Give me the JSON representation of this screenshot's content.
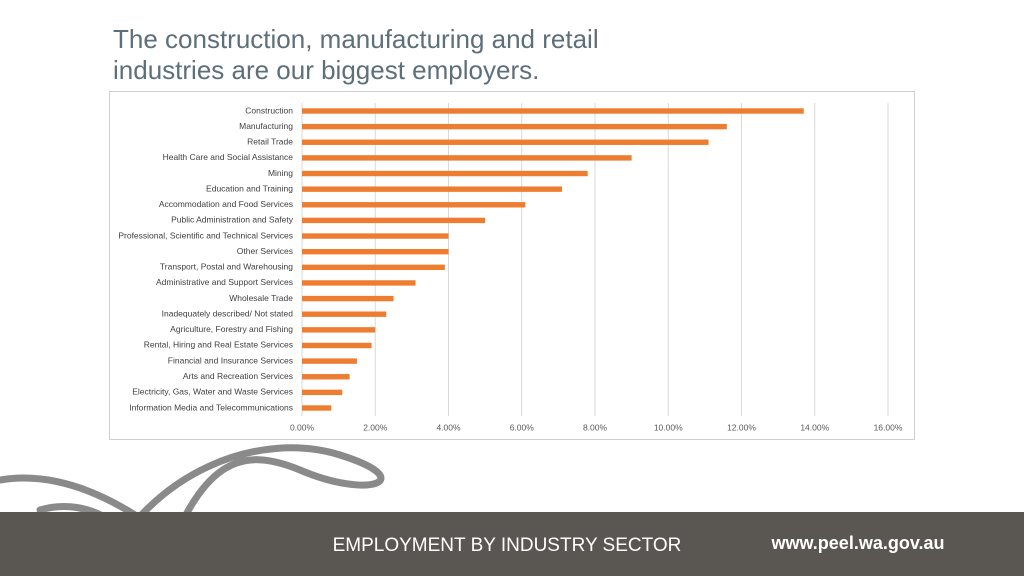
{
  "slide": {
    "title": "The construction, manufacturing and retail industries are our biggest employers.",
    "footer": "EMPLOYMENT BY INDUSTRY SECTOR",
    "url": "www.peel.wa.gov.au"
  },
  "chart_data": {
    "type": "bar",
    "orientation": "horizontal",
    "color": "#ed7d31",
    "grid": true,
    "categories": [
      "Construction",
      "Manufacturing",
      "Retail Trade",
      "Health Care and Social Assistance",
      "Mining",
      "Education and Training",
      "Accommodation and Food Services",
      "Public Administration and Safety",
      "Professional, Scientific and Technical Services",
      "Other Services",
      "Transport, Postal and Warehousing",
      "Administrative and Support Services",
      "Wholesale Trade",
      "Inadequately described/ Not stated",
      "Agriculture, Forestry and Fishing",
      "Rental, Hiring and Real Estate Services",
      "Financial and Insurance Services",
      "Arts and Recreation Services",
      "Electricity, Gas, Water and Waste Services",
      "Information Media and Telecommunications"
    ],
    "values": [
      13.7,
      11.6,
      11.1,
      9.0,
      7.8,
      7.1,
      6.1,
      5.0,
      4.0,
      4.0,
      3.9,
      3.1,
      2.5,
      2.3,
      2.0,
      1.9,
      1.5,
      1.3,
      1.1,
      0.8
    ],
    "xlim": [
      0,
      16
    ],
    "xticks": [
      {
        "value": 0,
        "label": "0.00%"
      },
      {
        "value": 2,
        "label": "2.00%"
      },
      {
        "value": 4,
        "label": "4.00%"
      },
      {
        "value": 6,
        "label": "6.00%"
      },
      {
        "value": 8,
        "label": "8.00%"
      },
      {
        "value": 10,
        "label": "10.00%"
      },
      {
        "value": 12,
        "label": "12.00%"
      },
      {
        "value": 14,
        "label": "14.00%"
      },
      {
        "value": 16,
        "label": "16.00%"
      }
    ]
  }
}
